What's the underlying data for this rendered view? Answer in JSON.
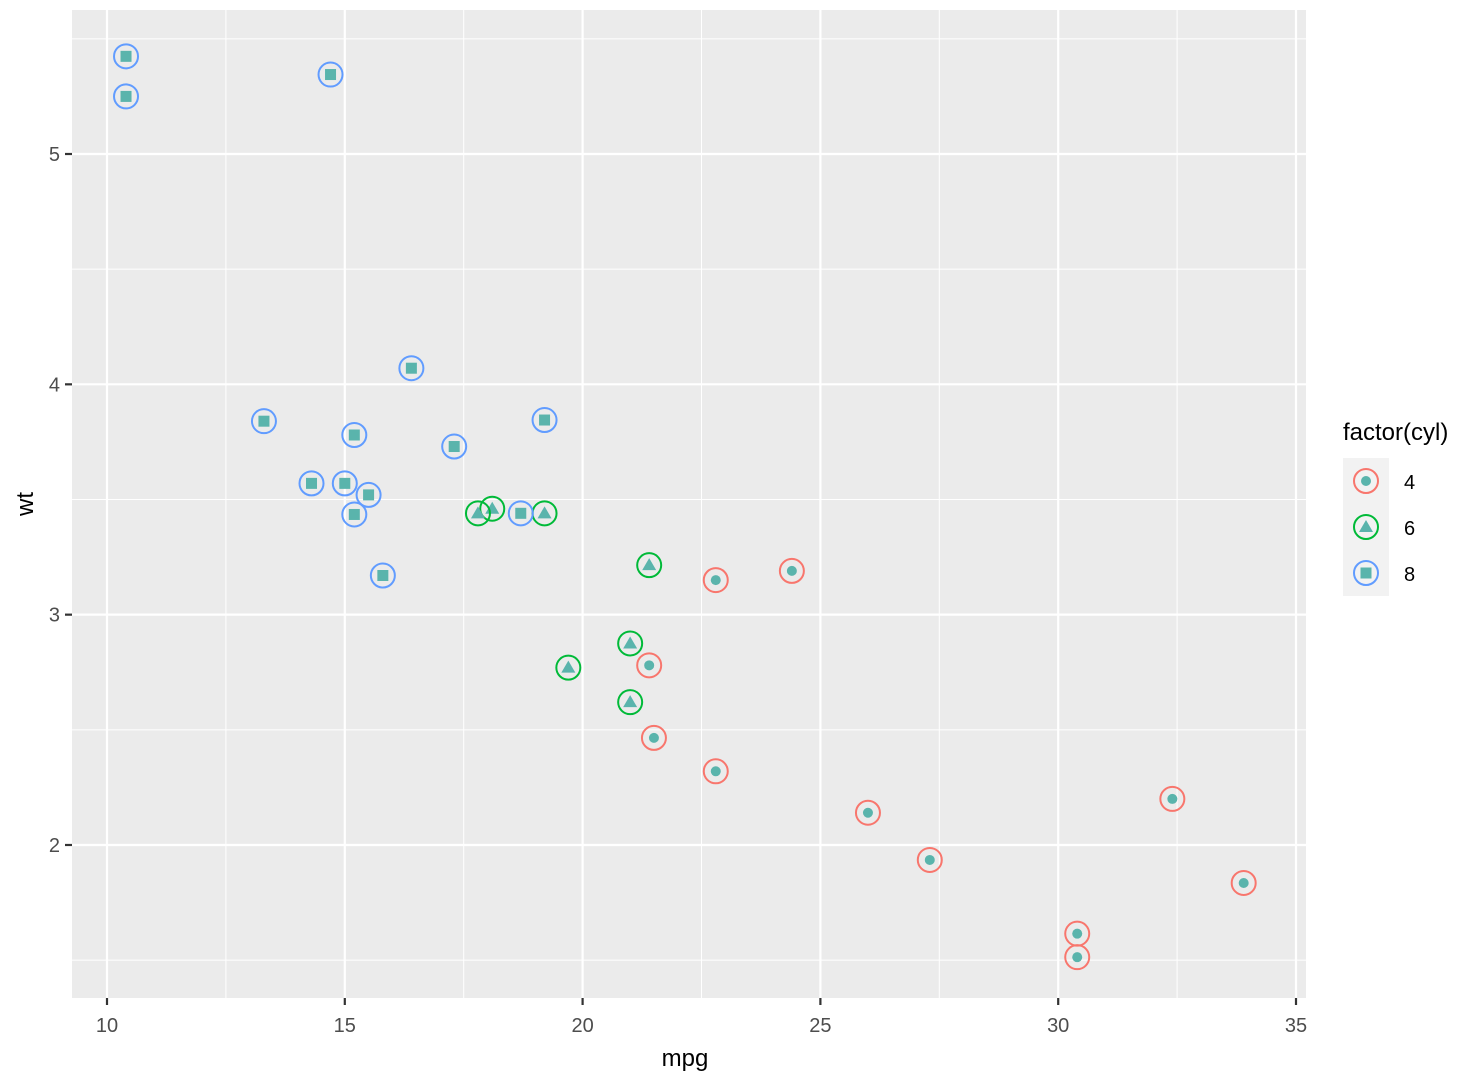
{
  "chart_data": {
    "type": "scatter",
    "title": "",
    "xlabel": "mpg",
    "ylabel": "wt",
    "xlim": [
      9.2,
      35.5
    ],
    "ylim": [
      1.33,
      5.6
    ],
    "x_ticks": [
      10,
      15,
      20,
      25,
      30,
      35
    ],
    "y_ticks": [
      2,
      3,
      4,
      5
    ],
    "grid": true,
    "legend": {
      "title": "factor(cyl)",
      "position": "right",
      "entries": [
        "4",
        "6",
        "8"
      ]
    },
    "colors": {
      "4": "#F8766D",
      "6": "#00BA38",
      "8": "#619CFF",
      "fill": "#5AB4AC"
    },
    "shapes": {
      "4": "circle",
      "6": "triangle",
      "8": "square"
    },
    "series": [
      {
        "name": "4",
        "points": [
          [
            22.8,
            2.32
          ],
          [
            24.4,
            3.19
          ],
          [
            22.8,
            3.15
          ],
          [
            32.4,
            2.2
          ],
          [
            30.4,
            1.615
          ],
          [
            33.9,
            1.835
          ],
          [
            21.5,
            2.465
          ],
          [
            27.3,
            1.935
          ],
          [
            26.0,
            2.14
          ],
          [
            30.4,
            1.513
          ],
          [
            21.4,
            2.78
          ]
        ]
      },
      {
        "name": "6",
        "points": [
          [
            21.0,
            2.62
          ],
          [
            21.0,
            2.875
          ],
          [
            21.4,
            3.215
          ],
          [
            18.1,
            3.46
          ],
          [
            19.2,
            3.44
          ],
          [
            17.8,
            3.44
          ],
          [
            19.7,
            2.77
          ]
        ]
      },
      {
        "name": "8",
        "points": [
          [
            18.7,
            3.44
          ],
          [
            14.3,
            3.57
          ],
          [
            16.4,
            4.07
          ],
          [
            17.3,
            3.73
          ],
          [
            15.2,
            3.78
          ],
          [
            10.4,
            5.25
          ],
          [
            10.4,
            5.424
          ],
          [
            14.7,
            5.345
          ],
          [
            15.5,
            3.52
          ],
          [
            15.2,
            3.435
          ],
          [
            13.3,
            3.84
          ],
          [
            19.2,
            3.845
          ],
          [
            15.8,
            3.17
          ],
          [
            15.0,
            3.57
          ]
        ]
      }
    ]
  }
}
